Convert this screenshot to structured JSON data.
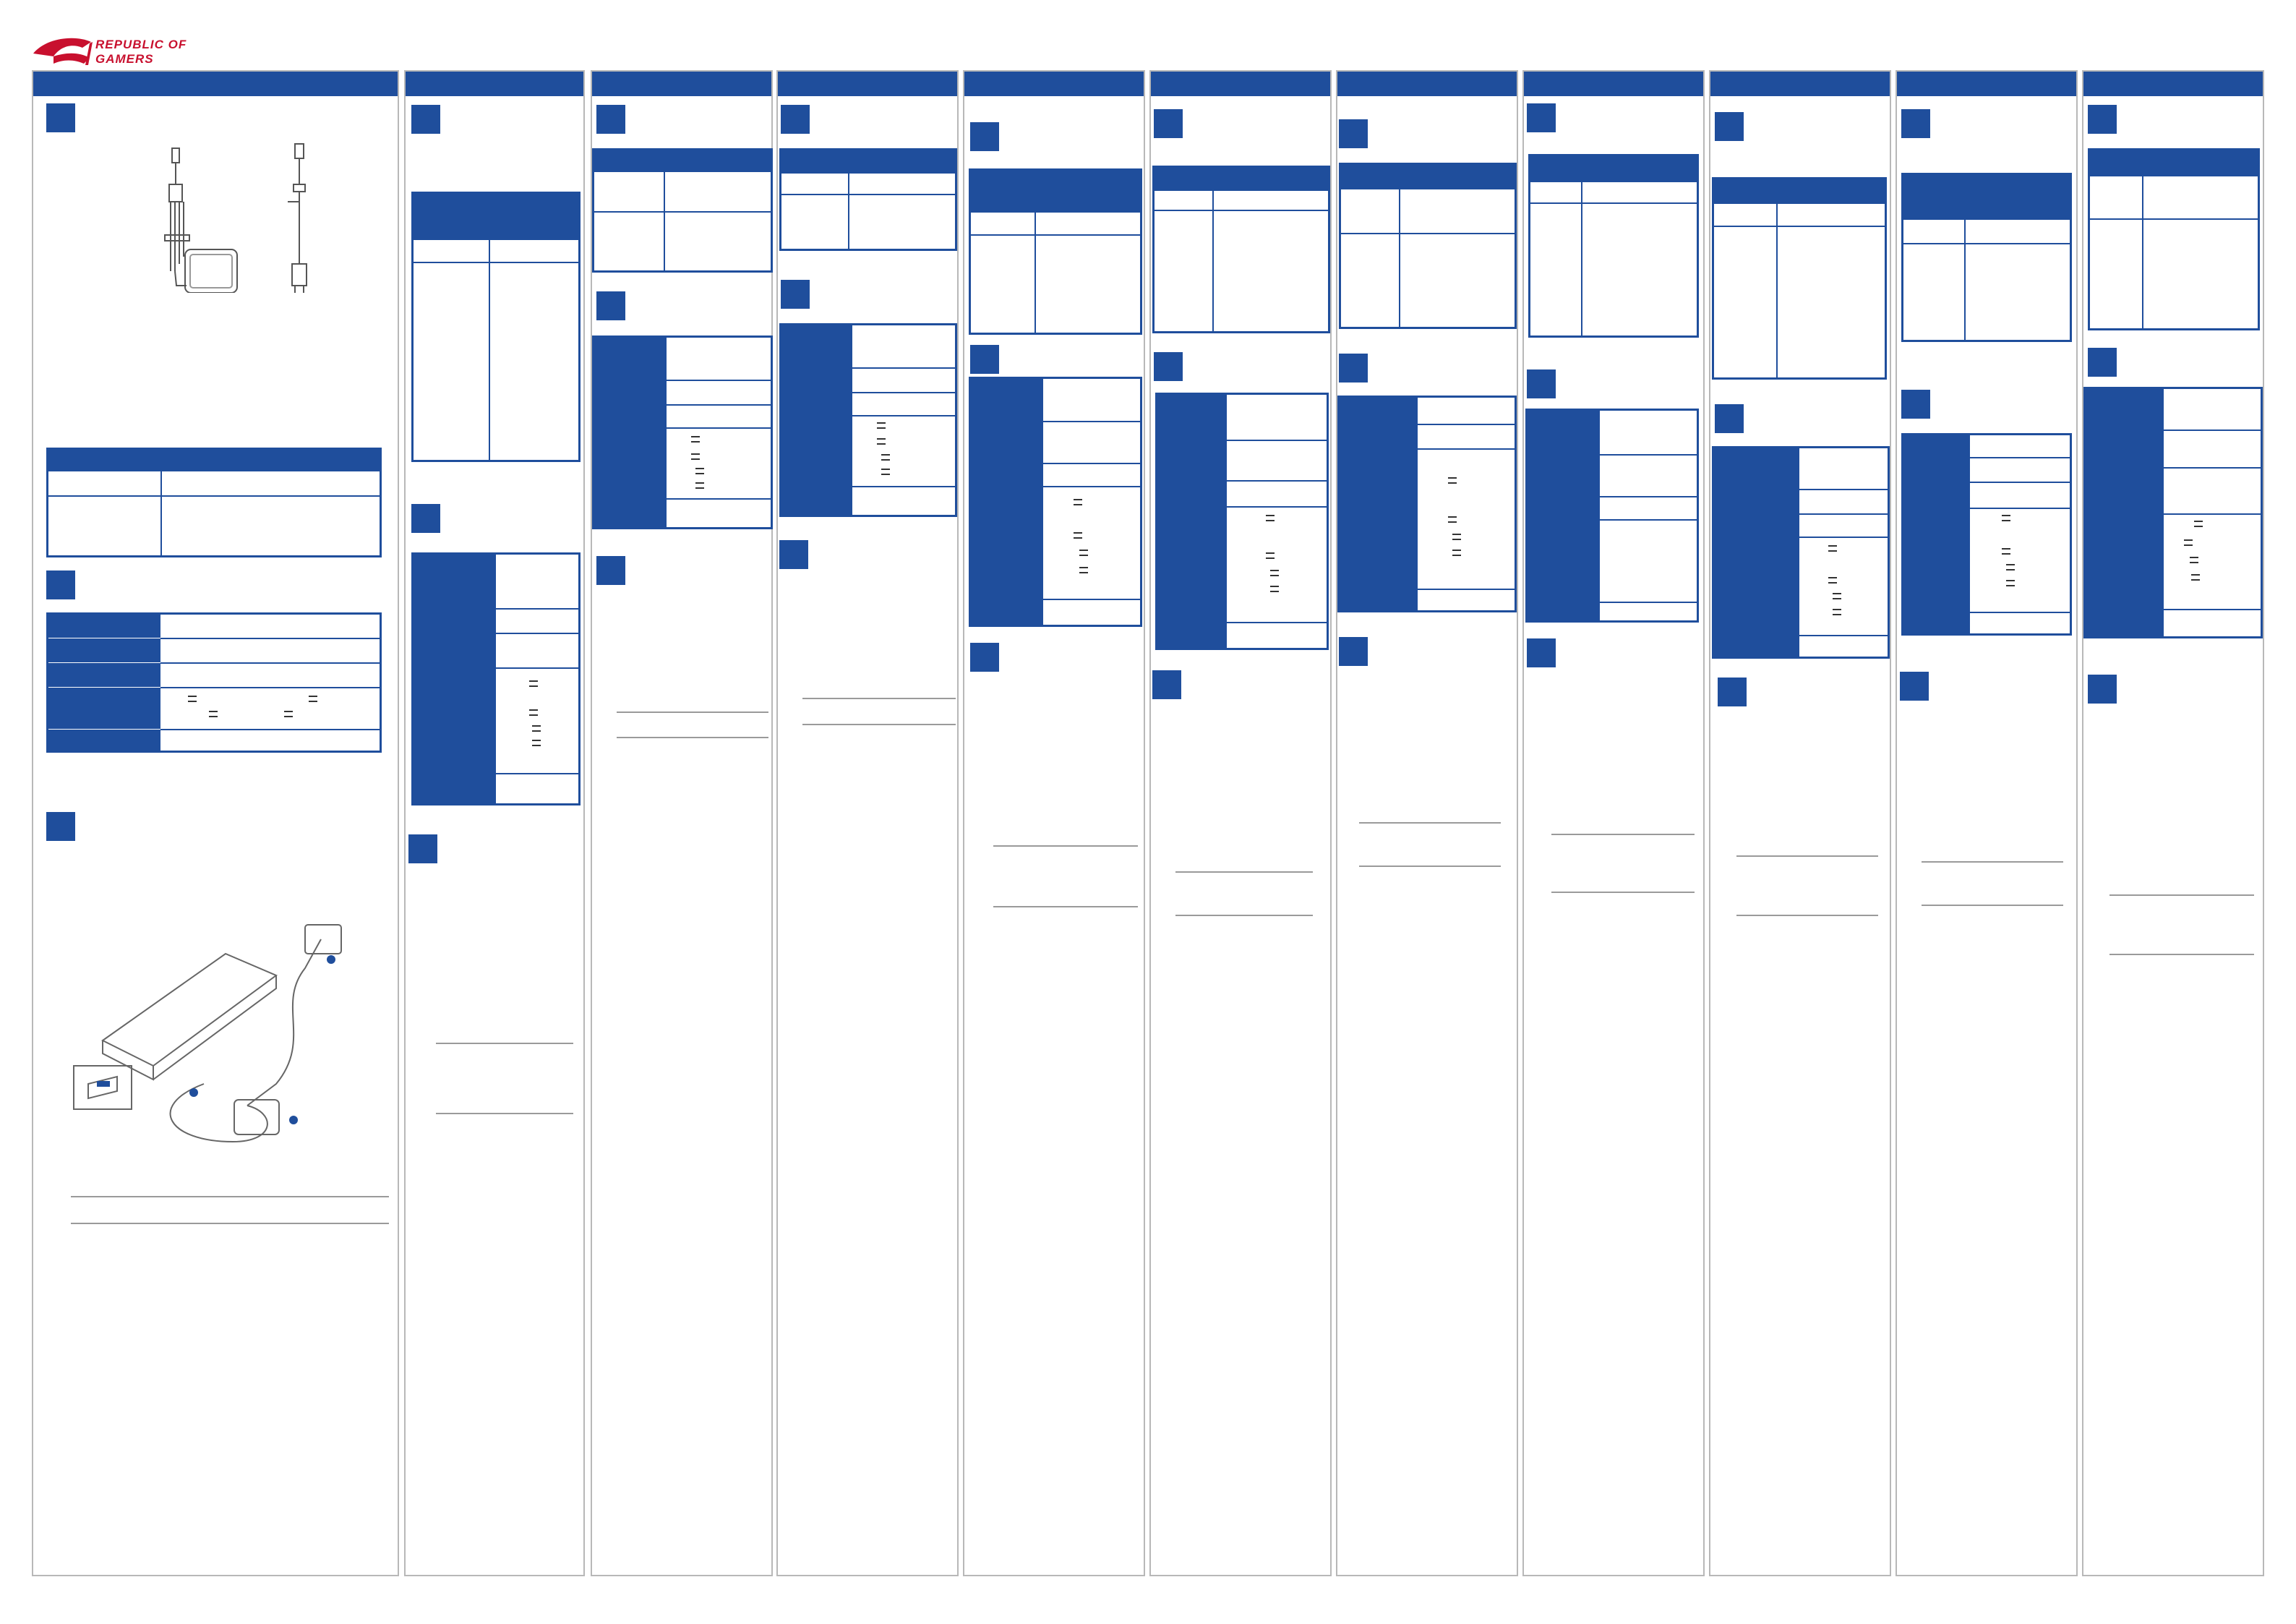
{
  "brand": {
    "logo_text_line1": "REPUBLIC OF",
    "logo_text_line2": "GAMERS",
    "accent": "#1f4e9c",
    "logo_color": "#c8102e"
  },
  "icons": {
    "logo": "rog-eye-logo",
    "adapter": "power-adapter-illustration",
    "laptop": "laptop-charging-illustration"
  },
  "columns_count": 12
}
